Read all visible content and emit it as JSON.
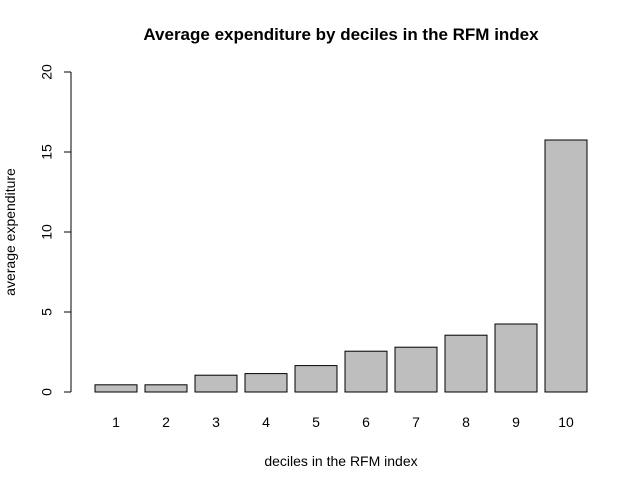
{
  "chart_data": {
    "type": "bar",
    "title": "Average expenditure by deciles in the RFM index",
    "xlabel": "deciles in the RFM index",
    "ylabel": "average expenditure",
    "categories": [
      "1",
      "2",
      "3",
      "4",
      "5",
      "6",
      "7",
      "8",
      "9",
      "10"
    ],
    "values": [
      0.45,
      0.45,
      1.05,
      1.15,
      1.65,
      2.55,
      2.8,
      3.55,
      4.25,
      15.75
    ],
    "ylim": [
      0,
      20
    ],
    "yticks": [
      "0",
      "5",
      "10",
      "15",
      "20"
    ],
    "grid": false,
    "bar_color": "#bebebe",
    "border_color": "#000000"
  }
}
